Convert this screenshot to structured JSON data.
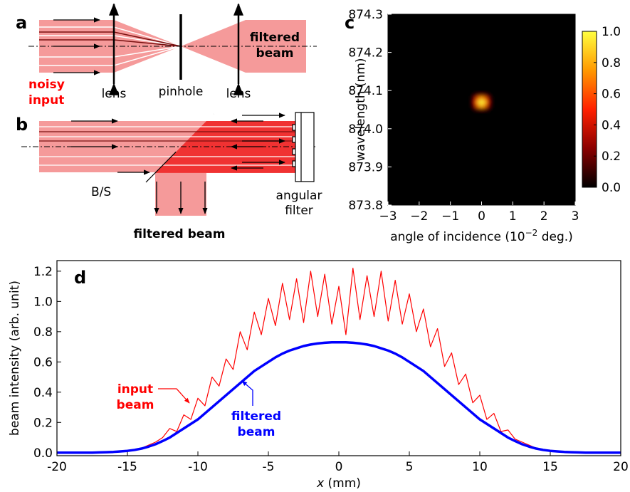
{
  "panels": {
    "a": {
      "label": "a",
      "input": [
        "noisy",
        "input"
      ],
      "lens1": "lens",
      "pinhole": "pinhole",
      "lens2": "lens",
      "output": [
        "filtered",
        "beam"
      ]
    },
    "b": {
      "label": "b",
      "splitter": "B/S",
      "output": "filtered beam",
      "filter": [
        "angular",
        "filter"
      ]
    }
  },
  "chart_data": [
    {
      "type": "heatmap",
      "panel_label": "c",
      "x_label": [
        "angle of incidence (10",
        "−2",
        " deg.)"
      ],
      "y_label": "wavelength (nm)",
      "x": [
        -0.3,
        -0.2,
        -0.1,
        0,
        0.1,
        0.2,
        0.3
      ],
      "y": [
        874.05,
        874.06,
        874.07,
        874.08,
        874.09
      ],
      "z": [
        [
          0,
          0.05,
          0.15,
          0.2,
          0.15,
          0.05,
          0
        ],
        [
          0.05,
          0.3,
          0.7,
          0.85,
          0.7,
          0.3,
          0.05
        ],
        [
          0.1,
          0.45,
          0.9,
          1.0,
          0.9,
          0.45,
          0.1
        ],
        [
          0.05,
          0.3,
          0.65,
          0.8,
          0.65,
          0.3,
          0.05
        ],
        [
          0,
          0.05,
          0.15,
          0.2,
          0.15,
          0.05,
          0
        ]
      ],
      "xlim": [
        -3,
        3
      ],
      "xticks": [
        {
          "value": -3,
          "label": "−3"
        },
        {
          "value": -2,
          "label": "−2"
        },
        {
          "value": -1,
          "label": "−1"
        },
        0,
        1,
        2,
        3
      ],
      "ylim": [
        873.8,
        874.3
      ],
      "yticks": [
        873.8,
        873.9,
        {
          "value": 874,
          "label": "874.0"
        },
        874.1,
        874.2,
        874.3
      ],
      "zlim": [
        0,
        1
      ],
      "zticks": [
        {
          "value": 0,
          "label": "0.0"
        },
        0.2,
        0.4,
        0.6,
        0.8,
        {
          "value": 1,
          "label": "1.0"
        }
      ],
      "colormap": [
        "#000000",
        "#8b0000",
        "#ff2000",
        "#ff9900",
        "#ffff40"
      ]
    },
    {
      "type": "line",
      "panel_label": "d",
      "x_label": [
        "x",
        " (mm)"
      ],
      "y_label": "beam intensity (arb. unit)",
      "x": [
        -20,
        -19.5,
        -19,
        -18.5,
        -18,
        -17.5,
        -17,
        -16.5,
        -16,
        -15.5,
        -15,
        -14.5,
        -14,
        -13.5,
        -13,
        -12.5,
        -12,
        -11.5,
        -11,
        -10.5,
        -10,
        -9.5,
        -9,
        -8.5,
        -8,
        -7.5,
        -7,
        -6.5,
        -6,
        -5.5,
        -5,
        -4.5,
        -4,
        -3.5,
        -3,
        -2.5,
        -2,
        -1.5,
        -1,
        -0.5,
        0,
        0.5,
        1,
        1.5,
        2,
        2.5,
        3,
        3.5,
        4,
        4.5,
        5,
        5.5,
        6,
        6.5,
        7,
        7.5,
        8,
        8.5,
        9,
        9.5,
        10,
        10.5,
        11,
        11.5,
        12,
        12.5,
        13,
        13.5,
        14,
        14.5,
        15,
        15.5,
        16,
        16.5,
        17,
        17.5,
        18,
        18.5,
        19,
        19.5,
        20
      ],
      "series": [
        {
          "name": [
            "input",
            "beam"
          ],
          "color": "#ff0000",
          "values": [
            0,
            0,
            0,
            0,
            0,
            0,
            0,
            0.003,
            0.005,
            0.009,
            0.013,
            0.02,
            0.03,
            0.05,
            0.07,
            0.1,
            0.16,
            0.14,
            0.25,
            0.22,
            0.36,
            0.31,
            0.5,
            0.44,
            0.62,
            0.55,
            0.8,
            0.68,
            0.93,
            0.78,
            1.02,
            0.84,
            1.12,
            0.88,
            1.15,
            0.86,
            1.2,
            0.9,
            1.18,
            0.85,
            1.1,
            0.78,
            1.22,
            0.88,
            1.17,
            0.9,
            1.2,
            0.87,
            1.14,
            0.85,
            1.05,
            0.8,
            0.95,
            0.7,
            0.82,
            0.57,
            0.66,
            0.45,
            0.52,
            0.33,
            0.38,
            0.22,
            0.26,
            0.14,
            0.15,
            0.09,
            0.07,
            0.05,
            0.03,
            0.02,
            0.013,
            0.009,
            0.005,
            0.003,
            0,
            0,
            0,
            0,
            0,
            0,
            0
          ]
        },
        {
          "name": [
            "filtered",
            "beam"
          ],
          "color": "#0000ff",
          "values": [
            0,
            0,
            0,
            0,
            0,
            0,
            0.002,
            0.003,
            0.005,
            0.008,
            0.012,
            0.018,
            0.027,
            0.04,
            0.056,
            0.077,
            0.1,
            0.13,
            0.16,
            0.19,
            0.22,
            0.26,
            0.3,
            0.34,
            0.38,
            0.42,
            0.46,
            0.5,
            0.54,
            0.57,
            0.6,
            0.63,
            0.655,
            0.675,
            0.69,
            0.705,
            0.715,
            0.722,
            0.727,
            0.73,
            0.73,
            0.73,
            0.727,
            0.722,
            0.715,
            0.705,
            0.69,
            0.675,
            0.655,
            0.63,
            0.6,
            0.57,
            0.54,
            0.5,
            0.46,
            0.42,
            0.38,
            0.34,
            0.3,
            0.26,
            0.22,
            0.19,
            0.16,
            0.13,
            0.1,
            0.077,
            0.056,
            0.04,
            0.027,
            0.018,
            0.012,
            0.008,
            0.005,
            0.003,
            0.002,
            0,
            0,
            0,
            0,
            0,
            0
          ]
        }
      ],
      "xlim": [
        -20,
        20
      ],
      "xticks": [
        -20,
        -15,
        -10,
        -5,
        0,
        5,
        10,
        15,
        20
      ],
      "ylim": [
        -0.02,
        1.27
      ],
      "yticks": [
        {
          "value": 0,
          "label": "0.0"
        },
        0.2,
        0.4,
        0.6,
        0.8,
        {
          "value": 1,
          "label": "1.0"
        },
        1.2
      ]
    }
  ]
}
